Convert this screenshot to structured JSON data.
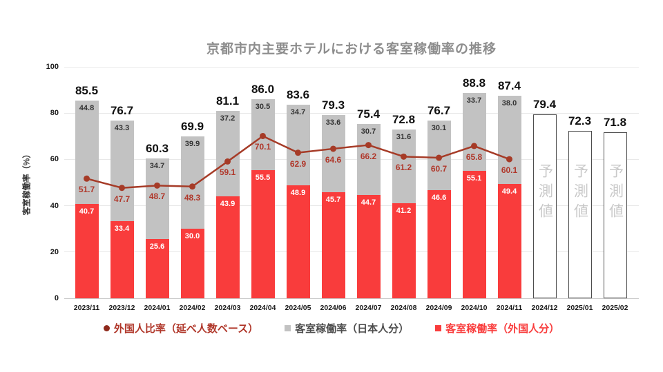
{
  "title": "京都市内主要ホテルにおける客室稼働率の推移",
  "y_axis": {
    "label": "客室稼働率（%）",
    "ticks": [
      0,
      20,
      40,
      60,
      80,
      100
    ]
  },
  "forecast_label": "予測値",
  "legend": [
    {
      "marker": "dot",
      "color": "#8f2a1c",
      "text_color": "#b0372a",
      "label": "外国人比率（延べ人数ベース）"
    },
    {
      "marker": "square",
      "color": "#c2c2c2",
      "text_color": "#4d4d4d",
      "label": "客室稼働率（日本人分）"
    },
    {
      "marker": "square",
      "color": "#f93c3c",
      "text_color": "#f93c3c",
      "label": "客室稼働率（外国人分）"
    }
  ],
  "chart_data": {
    "type": "bar",
    "subtype": "stacked-bars-with-line",
    "title": "京都市内主要ホテルにおける客室稼働率の推移",
    "ylabel": "客室稼働率（%）",
    "ylim": [
      0,
      100
    ],
    "grid": true,
    "legend_position": "bottom",
    "categories": [
      "2023/11",
      "2023/12",
      "2024/01",
      "2024/02",
      "2024/03",
      "2024/04",
      "2024/05",
      "2024/06",
      "2024/07",
      "2024/08",
      "2024/09",
      "2024/10",
      "2024/11",
      "2024/12",
      "2025/01",
      "2025/02"
    ],
    "series": [
      {
        "name": "客室稼働率（外国人分）",
        "type": "bar",
        "color": "#f93c3c",
        "values": [
          40.7,
          33.4,
          25.6,
          30.0,
          43.9,
          55.5,
          48.9,
          45.7,
          44.7,
          41.2,
          46.6,
          55.1,
          49.4,
          null,
          null,
          null
        ]
      },
      {
        "name": "客室稼働率（日本人分）",
        "type": "bar",
        "color": "#c2c2c2",
        "values": [
          44.8,
          43.3,
          34.7,
          39.9,
          37.2,
          30.5,
          34.7,
          33.6,
          30.7,
          31.6,
          30.1,
          33.7,
          38.0,
          null,
          null,
          null
        ]
      },
      {
        "name": "外国人比率（延べ人数ベース）",
        "type": "line",
        "color": "#a63b27",
        "values": [
          51.7,
          47.7,
          48.7,
          48.3,
          59.1,
          70.1,
          62.9,
          64.6,
          66.2,
          61.2,
          60.7,
          65.8,
          60.1,
          null,
          null,
          null
        ]
      }
    ],
    "totals": [
      85.5,
      76.7,
      60.3,
      69.9,
      81.1,
      86.0,
      83.6,
      79.3,
      75.4,
      72.8,
      76.7,
      88.8,
      87.4,
      79.4,
      72.3,
      71.8
    ],
    "forecast_flags": [
      false,
      false,
      false,
      false,
      false,
      false,
      false,
      false,
      false,
      false,
      false,
      false,
      false,
      true,
      true,
      true
    ]
  }
}
